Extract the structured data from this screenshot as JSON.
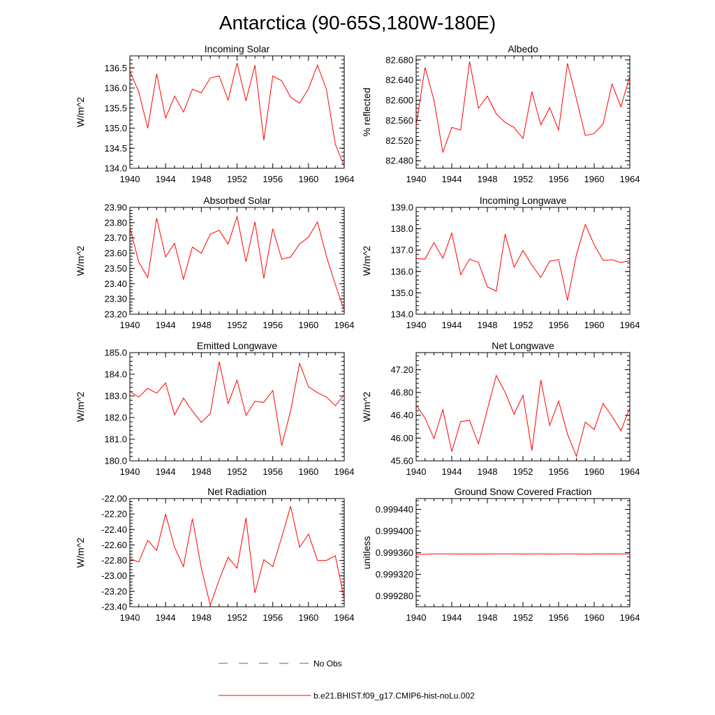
{
  "figure": {
    "title": "Antarctica (90-65S,180W-180E)"
  },
  "legend": {
    "items": [
      {
        "label": "No Obs",
        "color": "#4a5bd6",
        "dash": true
      },
      {
        "label": "b.e21.BHIST.f09_g17.CMIP6-hist-noLu.002",
        "color": "#ff0000",
        "dash": false
      }
    ]
  },
  "colors": {
    "series": "#ff0000",
    "axis": "#000000"
  },
  "chart_data": [
    {
      "type": "line",
      "id": "incoming-solar",
      "title": "Incoming Solar",
      "ylabel": "W/m^2",
      "xlim": [
        1940,
        1964
      ],
      "ylim": [
        134.0,
        136.8
      ],
      "xticks": [
        1940,
        1944,
        1948,
        1952,
        1956,
        1960,
        1964
      ],
      "yticks": [
        134.0,
        134.5,
        135.0,
        135.5,
        136.0,
        136.5
      ],
      "ydec": 1,
      "x": [
        1940,
        1941,
        1942,
        1943,
        1944,
        1945,
        1946,
        1947,
        1948,
        1949,
        1950,
        1951,
        1952,
        1953,
        1954,
        1955,
        1956,
        1957,
        1958,
        1959,
        1960,
        1961,
        1962,
        1963,
        1964
      ],
      "series": [
        {
          "values": [
            136.42,
            135.9,
            135.0,
            136.35,
            135.25,
            135.8,
            135.4,
            135.97,
            135.88,
            136.25,
            136.3,
            135.7,
            136.62,
            135.68,
            136.57,
            134.7,
            136.3,
            136.18,
            135.77,
            135.62,
            135.98,
            136.57,
            135.97,
            134.6,
            134.05
          ]
        }
      ]
    },
    {
      "type": "line",
      "id": "albedo",
      "title": "Albedo",
      "ylabel": "% reflected",
      "xlim": [
        1940,
        1964
      ],
      "ylim": [
        82.465,
        82.688
      ],
      "xticks": [
        1940,
        1944,
        1948,
        1952,
        1956,
        1960,
        1964
      ],
      "yticks": [
        82.48,
        82.52,
        82.56,
        82.6,
        82.64,
        82.68
      ],
      "ydec": 3,
      "x": [
        1940,
        1941,
        1942,
        1943,
        1944,
        1945,
        1946,
        1947,
        1948,
        1949,
        1950,
        1951,
        1952,
        1953,
        1954,
        1955,
        1956,
        1957,
        1958,
        1959,
        1960,
        1961,
        1962,
        1963,
        1964
      ],
      "series": [
        {
          "values": [
            82.55,
            82.665,
            82.6,
            82.497,
            82.546,
            82.541,
            82.677,
            82.584,
            82.608,
            82.573,
            82.556,
            82.546,
            82.524,
            82.617,
            82.551,
            82.585,
            82.541,
            82.673,
            82.603,
            82.53,
            82.534,
            82.553,
            82.632,
            82.587,
            82.648
          ]
        }
      ]
    },
    {
      "type": "line",
      "id": "absorbed-solar",
      "title": "Absorbed Solar",
      "ylabel": "W/m^2",
      "xlim": [
        1940,
        1964
      ],
      "ylim": [
        23.2,
        23.9
      ],
      "xticks": [
        1940,
        1944,
        1948,
        1952,
        1956,
        1960,
        1964
      ],
      "yticks": [
        23.2,
        23.3,
        23.4,
        23.5,
        23.6,
        23.7,
        23.8,
        23.9
      ],
      "ydec": 2,
      "x": [
        1940,
        1941,
        1942,
        1943,
        1944,
        1945,
        1946,
        1947,
        1948,
        1949,
        1950,
        1951,
        1952,
        1953,
        1954,
        1955,
        1956,
        1957,
        1958,
        1959,
        1960,
        1961,
        1962,
        1963,
        1964
      ],
      "series": [
        {
          "values": [
            23.77,
            23.54,
            23.44,
            23.83,
            23.575,
            23.665,
            23.43,
            23.64,
            23.6,
            23.725,
            23.75,
            23.66,
            23.84,
            23.545,
            23.805,
            23.435,
            23.76,
            23.56,
            23.575,
            23.66,
            23.705,
            23.805,
            23.58,
            23.395,
            23.225
          ]
        }
      ]
    },
    {
      "type": "line",
      "id": "incoming-longwave",
      "title": "Incoming Longwave",
      "ylabel": "W/m^2",
      "xlim": [
        1940,
        1964
      ],
      "ylim": [
        134.0,
        139.0
      ],
      "xticks": [
        1940,
        1944,
        1948,
        1952,
        1956,
        1960,
        1964
      ],
      "yticks": [
        134.0,
        135.0,
        136.0,
        137.0,
        138.0,
        139.0
      ],
      "ydec": 1,
      "x": [
        1940,
        1941,
        1942,
        1943,
        1944,
        1945,
        1946,
        1947,
        1948,
        1949,
        1950,
        1951,
        1952,
        1953,
        1954,
        1955,
        1956,
        1957,
        1958,
        1959,
        1960,
        1961,
        1962,
        1963,
        1964
      ],
      "series": [
        {
          "values": [
            136.6,
            136.58,
            137.35,
            136.62,
            137.8,
            135.85,
            136.58,
            136.42,
            135.28,
            135.08,
            137.75,
            136.2,
            136.98,
            136.3,
            135.72,
            136.48,
            136.56,
            134.65,
            136.78,
            138.2,
            137.25,
            136.52,
            136.55,
            136.42,
            136.5
          ]
        }
      ]
    },
    {
      "type": "line",
      "id": "emitted-longwave",
      "title": "Emitted Longwave",
      "ylabel": "W/m^2",
      "xlim": [
        1940,
        1964
      ],
      "ylim": [
        180.0,
        185.0
      ],
      "xticks": [
        1940,
        1944,
        1948,
        1952,
        1956,
        1960,
        1964
      ],
      "yticks": [
        180.0,
        181.0,
        182.0,
        183.0,
        184.0,
        185.0
      ],
      "ydec": 1,
      "x": [
        1940,
        1941,
        1942,
        1943,
        1944,
        1945,
        1946,
        1947,
        1948,
        1949,
        1950,
        1951,
        1952,
        1953,
        1954,
        1955,
        1956,
        1957,
        1958,
        1959,
        1960,
        1961,
        1962,
        1963,
        1964
      ],
      "series": [
        {
          "values": [
            183.2,
            182.95,
            183.35,
            183.12,
            183.6,
            182.12,
            182.9,
            182.3,
            181.78,
            182.18,
            184.58,
            182.65,
            183.72,
            182.1,
            182.75,
            182.7,
            183.25,
            180.7,
            182.32,
            184.5,
            183.42,
            183.15,
            182.95,
            182.55,
            183.05
          ]
        }
      ]
    },
    {
      "type": "line",
      "id": "net-longwave",
      "title": "Net Longwave",
      "ylabel": "W/m^2",
      "xlim": [
        1940,
        1964
      ],
      "ylim": [
        45.6,
        47.5
      ],
      "xticks": [
        1940,
        1944,
        1948,
        1952,
        1956,
        1960,
        1964
      ],
      "yticks": [
        45.6,
        46.0,
        46.4,
        46.8,
        47.2
      ],
      "ydec": 2,
      "x": [
        1940,
        1941,
        1942,
        1943,
        1944,
        1945,
        1946,
        1947,
        1948,
        1949,
        1950,
        1951,
        1952,
        1953,
        1954,
        1955,
        1956,
        1957,
        1958,
        1959,
        1960,
        1961,
        1962,
        1963,
        1964
      ],
      "series": [
        {
          "values": [
            46.58,
            46.35,
            45.99,
            46.5,
            45.76,
            46.29,
            46.31,
            45.9,
            46.5,
            47.1,
            46.8,
            46.42,
            46.75,
            45.78,
            47.02,
            46.22,
            46.65,
            46.07,
            45.68,
            46.28,
            46.15,
            46.61,
            46.38,
            46.13,
            46.53
          ]
        }
      ]
    },
    {
      "type": "line",
      "id": "net-radiation",
      "title": "Net Radiation",
      "ylabel": "W/m^2",
      "xlim": [
        1940,
        1964
      ],
      "ylim": [
        -23.4,
        -22.0
      ],
      "xticks": [
        1940,
        1944,
        1948,
        1952,
        1956,
        1960,
        1964
      ],
      "yticks": [
        -23.4,
        -23.2,
        -23.0,
        -22.8,
        -22.6,
        -22.4,
        -22.2,
        -22.0
      ],
      "ydec": 2,
      "x": [
        1940,
        1941,
        1942,
        1943,
        1944,
        1945,
        1946,
        1947,
        1948,
        1949,
        1950,
        1951,
        1952,
        1953,
        1954,
        1955,
        1956,
        1957,
        1958,
        1959,
        1960,
        1961,
        1962,
        1963,
        1964
      ],
      "series": [
        {
          "values": [
            -22.78,
            -22.82,
            -22.54,
            -22.67,
            -22.2,
            -22.63,
            -22.88,
            -22.26,
            -22.9,
            -23.38,
            -23.05,
            -22.76,
            -22.9,
            -22.25,
            -23.22,
            -22.79,
            -22.88,
            -22.5,
            -22.1,
            -22.63,
            -22.46,
            -22.8,
            -22.8,
            -22.74,
            -23.3
          ]
        }
      ]
    },
    {
      "type": "line",
      "id": "ground-snow-covered-fraction",
      "title": "Ground Snow Covered Fraction",
      "ylabel": "unitless",
      "xlim": [
        1940,
        1964
      ],
      "ylim": [
        0.99926,
        0.99946
      ],
      "xticks": [
        1940,
        1944,
        1948,
        1952,
        1956,
        1960,
        1964
      ],
      "yticks": [
        0.99928,
        0.99932,
        0.99936,
        0.9994,
        0.99944
      ],
      "ydec": 6,
      "x": [
        1940,
        1941,
        1942,
        1943,
        1944,
        1945,
        1946,
        1947,
        1948,
        1949,
        1950,
        1951,
        1952,
        1953,
        1954,
        1955,
        1956,
        1957,
        1958,
        1959,
        1960,
        1961,
        1962,
        1963,
        1964
      ],
      "series": [
        {
          "values": [
            0.9993575,
            0.999357,
            0.9993578,
            0.9993577,
            0.9993576,
            0.9993575,
            0.9993576,
            0.9993575,
            0.9993576,
            0.9993577,
            0.9993578,
            0.9993577,
            0.9993574,
            0.9993576,
            0.9993577,
            0.9993575,
            0.9993576,
            0.9993577,
            0.9993576,
            0.9993572,
            0.9993577,
            0.9993576,
            0.9993578,
            0.9993576,
            0.9993577
          ]
        }
      ]
    }
  ]
}
